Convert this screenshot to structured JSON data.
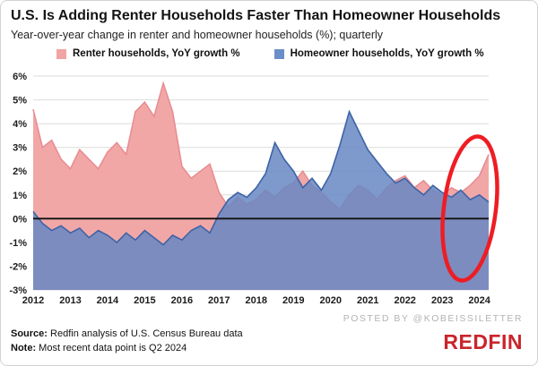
{
  "title": "U.S. Is Adding Renter Households Faster Than Homeowner Households",
  "subtitle": "Year-over-year change in renter and homeowner households (%); quarterly",
  "legend": [
    {
      "label": "Renter households, YoY growth %",
      "color": "#f2a3a3"
    },
    {
      "label": "Homeowner households, YoY growth %",
      "color": "#6b8ec9"
    }
  ],
  "footer": {
    "source_label": "Source:",
    "source_text": " Redfin analysis of U.S. Census Bureau data",
    "note_label": "Note:",
    "note_text": " Most recent data point is Q2 2024",
    "posted_by": "POSTED BY @KOBEISSILETTER",
    "brand": "REDFIN",
    "brand_color": "#c9252b"
  },
  "annotation": {
    "color": "#ee1d23"
  },
  "chart_data": {
    "type": "area",
    "title": "U.S. Is Adding Renter Households Faster Than Homeowner Households",
    "subtitle": "Year-over-year change in renter and homeowner households (%); quarterly",
    "x_start": 2012,
    "x_step_years": 0.25,
    "x_tick_labels": [
      "2012",
      "2013",
      "2014",
      "2015",
      "2016",
      "2017",
      "2018",
      "2019",
      "2020",
      "2021",
      "2022",
      "2023",
      "2024"
    ],
    "ylim": [
      -3,
      6
    ],
    "y_ticks": [
      {
        "value": 6,
        "label": "6%"
      },
      {
        "value": 5,
        "label": "5%"
      },
      {
        "value": 4,
        "label": "4%"
      },
      {
        "value": 3,
        "label": "3%"
      },
      {
        "value": 2,
        "label": "2%"
      },
      {
        "value": 1,
        "label": "1%"
      },
      {
        "value": 0,
        "label": "0%"
      },
      {
        "value": -1,
        "label": "-1%"
      },
      {
        "value": -2,
        "label": "-2%"
      },
      {
        "value": -3,
        "label": "-3%"
      }
    ],
    "grid": true,
    "legend_position": "top",
    "series": [
      {
        "name": "Renter households, YoY growth %",
        "fill": "#f2a7a7",
        "fill_opacity": 1,
        "stroke": "#e88d93",
        "values": [
          4.6,
          3.0,
          3.3,
          2.5,
          2.1,
          2.9,
          2.5,
          2.1,
          2.8,
          3.2,
          2.7,
          4.5,
          4.9,
          4.3,
          5.7,
          4.5,
          2.2,
          1.7,
          2.0,
          2.3,
          1.1,
          0.5,
          0.9,
          0.6,
          0.8,
          1.2,
          0.9,
          1.3,
          1.5,
          2.0,
          1.4,
          1.1,
          0.7,
          0.4,
          1.0,
          1.4,
          1.2,
          0.8,
          1.3,
          1.6,
          1.8,
          1.3,
          1.6,
          1.2,
          1.0,
          1.3,
          1.1,
          1.4,
          1.8,
          2.7
        ]
      },
      {
        "name": "Homeowner households, YoY growth %",
        "fill": "#6787c3",
        "fill_opacity": 0.85,
        "stroke": "#3e63a6",
        "values": [
          0.3,
          -0.2,
          -0.5,
          -0.3,
          -0.6,
          -0.4,
          -0.8,
          -0.5,
          -0.7,
          -1.0,
          -0.6,
          -0.9,
          -0.5,
          -0.8,
          -1.1,
          -0.7,
          -0.9,
          -0.5,
          -0.3,
          -0.6,
          0.2,
          0.8,
          1.1,
          0.9,
          1.3,
          1.9,
          3.2,
          2.5,
          2.0,
          1.3,
          1.7,
          1.2,
          1.9,
          3.1,
          4.5,
          3.7,
          2.9,
          2.4,
          1.9,
          1.5,
          1.7,
          1.3,
          1.0,
          1.4,
          1.1,
          0.9,
          1.2,
          0.8,
          1.0,
          0.7
        ]
      }
    ]
  }
}
